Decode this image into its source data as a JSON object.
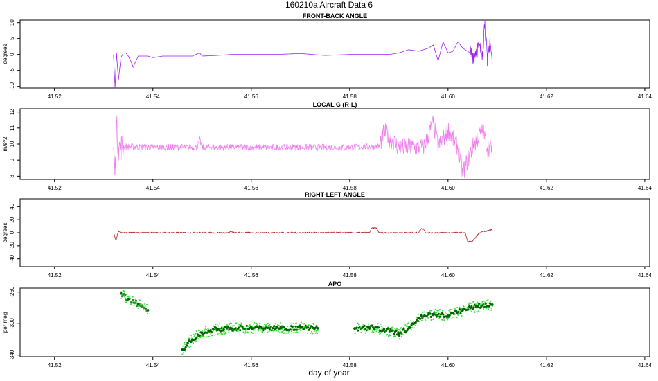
{
  "title": "160210a    Aircraft Data 6",
  "xlabel": "day of year",
  "chart_data": [
    {
      "type": "line",
      "title": "FRONT-BACK ANGLE",
      "ylabel": "degrees",
      "color": "#a020f0",
      "xlim": [
        41.513,
        41.641
      ],
      "ylim": [
        -10.5,
        10.8
      ],
      "xticks": [
        41.52,
        41.54,
        41.56,
        41.58,
        41.6,
        41.62,
        41.64
      ],
      "xtick_labels": [
        "41.52",
        "41.54",
        "41.56",
        "41.58",
        "41.60",
        "41.62",
        "41.64"
      ],
      "yticks": [
        -10,
        -5,
        0,
        5,
        10
      ],
      "ytick_labels": [
        "-10",
        "-5",
        "0",
        "5",
        "10"
      ],
      "x": [
        41.532,
        41.5323,
        41.5326,
        41.533,
        41.5335,
        41.534,
        41.5345,
        41.535,
        41.5355,
        41.536,
        41.537,
        41.538,
        41.539,
        41.54,
        41.542,
        41.545,
        41.548,
        41.5495,
        41.55,
        41.553,
        41.556,
        41.56,
        41.565,
        41.57,
        41.575,
        41.58,
        41.585,
        41.588,
        41.59,
        41.592,
        41.594,
        41.596,
        41.597,
        41.598,
        41.599,
        41.6,
        41.601,
        41.602,
        41.603,
        41.604,
        41.605,
        41.606,
        41.607,
        41.6075,
        41.608,
        41.6085,
        41.609
      ],
      "y": [
        0,
        -10.5,
        0.5,
        -8,
        -1,
        0.5,
        0.5,
        -0.5,
        -2,
        -4,
        -0.5,
        -0.5,
        -0.5,
        -1,
        -0.5,
        -0.5,
        -0.5,
        0.5,
        -0.5,
        -0.3,
        0,
        0,
        0,
        0.3,
        -0.3,
        0,
        0,
        0,
        0.5,
        1.5,
        1,
        2,
        3,
        -2,
        4,
        0.5,
        1,
        4,
        2,
        1,
        0,
        2,
        1,
        10.8,
        -3.5,
        5,
        -3
      ],
      "noise": [
        {
          "x": [
            41.6045,
            41.609
          ],
          "amp": 3
        }
      ]
    },
    {
      "type": "line",
      "title": "LOCAL G (R-L)",
      "ylabel": "m/s^2",
      "color": "#ee82ee",
      "xlim": [
        41.513,
        41.641
      ],
      "ylim": [
        7.8,
        12.2
      ],
      "xticks": [
        41.52,
        41.54,
        41.56,
        41.58,
        41.6,
        41.62,
        41.64
      ],
      "xtick_labels": [
        "41.52",
        "41.54",
        "41.56",
        "41.58",
        "41.60",
        "41.62",
        "41.64"
      ],
      "yticks": [
        8,
        9,
        10,
        11,
        12
      ],
      "ytick_labels": [
        "8",
        "9",
        "10",
        "11",
        "12"
      ],
      "x": [
        41.532,
        41.5323,
        41.5326,
        41.533,
        41.534,
        41.54,
        41.549,
        41.5495,
        41.55,
        41.56,
        41.57,
        41.58,
        41.586,
        41.587,
        41.59,
        41.595,
        41.597,
        41.598,
        41.6,
        41.602,
        41.603,
        41.605,
        41.607,
        41.608,
        41.609
      ],
      "y": [
        9.8,
        8.1,
        11.2,
        9.8,
        9.85,
        9.8,
        9.8,
        10.3,
        9.8,
        9.8,
        9.8,
        9.8,
        9.85,
        10.8,
        9.8,
        9.8,
        11.3,
        9.8,
        10.9,
        9.8,
        8.2,
        9.8,
        10.9,
        9.8,
        9.8
      ],
      "noise": [
        {
          "x": [
            41.532,
            41.534
          ],
          "amp": 0.9
        },
        {
          "x": [
            41.534,
            41.586
          ],
          "amp": 0.2
        },
        {
          "x": [
            41.586,
            41.609
          ],
          "amp": 0.6
        }
      ]
    },
    {
      "type": "line",
      "title": "RIGHT-LEFT ANGLE",
      "ylabel": "degrees",
      "color": "#b22222",
      "xlim": [
        41.513,
        41.641
      ],
      "ylim": [
        -52,
        52
      ],
      "xticks": [
        41.52,
        41.54,
        41.56,
        41.58,
        41.6,
        41.62,
        41.64
      ],
      "xtick_labels": [
        "41.52",
        "41.54",
        "41.56",
        "41.58",
        "41.60",
        "41.62",
        "41.64"
      ],
      "yticks": [
        -40,
        -20,
        0,
        20,
        40
      ],
      "ytick_labels": [
        "-40",
        "-20",
        "0",
        "20",
        "40"
      ],
      "x": [
        41.532,
        41.5325,
        41.533,
        41.5335,
        41.54,
        41.5555,
        41.556,
        41.5565,
        41.584,
        41.5845,
        41.5855,
        41.586,
        41.594,
        41.5945,
        41.595,
        41.5955,
        41.6,
        41.6035,
        41.604,
        41.605,
        41.606,
        41.607,
        41.608,
        41.609
      ],
      "y": [
        0,
        -12,
        3,
        0,
        0,
        0,
        2,
        0,
        0,
        7,
        7,
        0,
        0,
        6,
        6,
        0,
        0,
        0,
        -14,
        -13,
        -3,
        2,
        3,
        5
      ],
      "noise": [
        {
          "x": [
            41.532,
            41.609
          ],
          "amp": 1
        }
      ]
    },
    {
      "type": "scatter",
      "title": "APO",
      "ylabel": "per meg",
      "xlim": [
        41.513,
        41.641
      ],
      "ylim": [
        -342,
        -255
      ],
      "xticks": [
        41.52,
        41.54,
        41.56,
        41.58,
        41.6,
        41.62,
        41.64
      ],
      "xtick_labels": [
        "41.52",
        "41.54",
        "41.56",
        "41.58",
        "41.60",
        "41.62",
        "41.64"
      ],
      "yticks": [
        -260,
        -300,
        -340
      ],
      "ytick_labels": [
        "-260",
        "-300",
        "-340"
      ],
      "series": [
        {
          "color": "#32cd32",
          "x": [
            41.5335,
            41.535,
            41.537,
            41.539
          ],
          "y": [
            -262,
            -269,
            -275,
            -283
          ]
        },
        {
          "color": "#006400",
          "x": [
            41.546,
            41.548,
            41.55,
            41.553,
            41.556,
            41.56,
            41.565,
            41.57,
            41.5735
          ],
          "y": [
            -333,
            -320,
            -312,
            -307,
            -306,
            -305,
            -306,
            -305,
            -306
          ]
        },
        {
          "color": "#006400",
          "x": [
            41.581,
            41.584,
            41.587,
            41.59,
            41.592,
            41.594,
            41.597,
            41.6,
            41.603,
            41.606,
            41.609
          ],
          "y": [
            -306,
            -305,
            -307,
            -313,
            -306,
            -293,
            -288,
            -290,
            -283,
            -278,
            -276
          ]
        }
      ]
    }
  ]
}
